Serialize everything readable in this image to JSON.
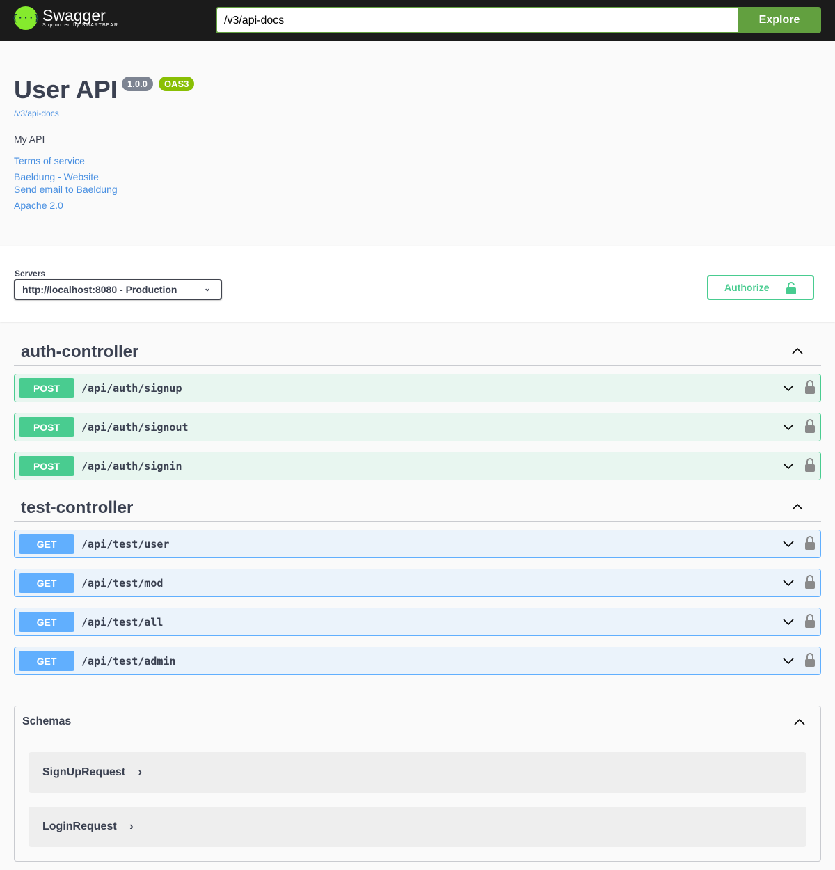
{
  "topbar": {
    "logo_name": "Swagger",
    "logo_sub": "Supported by SMARTBEAR",
    "logo_glyph": "{···}",
    "url_value": "/v3/api-docs",
    "explore_label": "Explore"
  },
  "info": {
    "title": "User API",
    "version": "1.0.0",
    "oas": "OAS3",
    "spec_link": "/v3/api-docs",
    "description": "My API",
    "terms": "Terms of service",
    "website": "Baeldung - Website",
    "email": "Send email to Baeldung",
    "license": "Apache 2.0"
  },
  "servers": {
    "label": "Servers",
    "selected": "http://localhost:8080 - Production",
    "authorize_label": "Authorize"
  },
  "tags": [
    {
      "name": "auth-controller",
      "ops": [
        {
          "method": "POST",
          "path": "/api/auth/signup"
        },
        {
          "method": "POST",
          "path": "/api/auth/signout"
        },
        {
          "method": "POST",
          "path": "/api/auth/signin"
        }
      ]
    },
    {
      "name": "test-controller",
      "ops": [
        {
          "method": "GET",
          "path": "/api/test/user"
        },
        {
          "method": "GET",
          "path": "/api/test/mod"
        },
        {
          "method": "GET",
          "path": "/api/test/all"
        },
        {
          "method": "GET",
          "path": "/api/test/admin"
        }
      ]
    }
  ],
  "schemas": {
    "title": "Schemas",
    "models": [
      "SignUpRequest",
      "LoginRequest"
    ]
  },
  "colors": {
    "post": "#49cc90",
    "get": "#61affe",
    "topbar": "#1b1b1b",
    "explore": "#62a03f",
    "link": "#4990e2"
  }
}
